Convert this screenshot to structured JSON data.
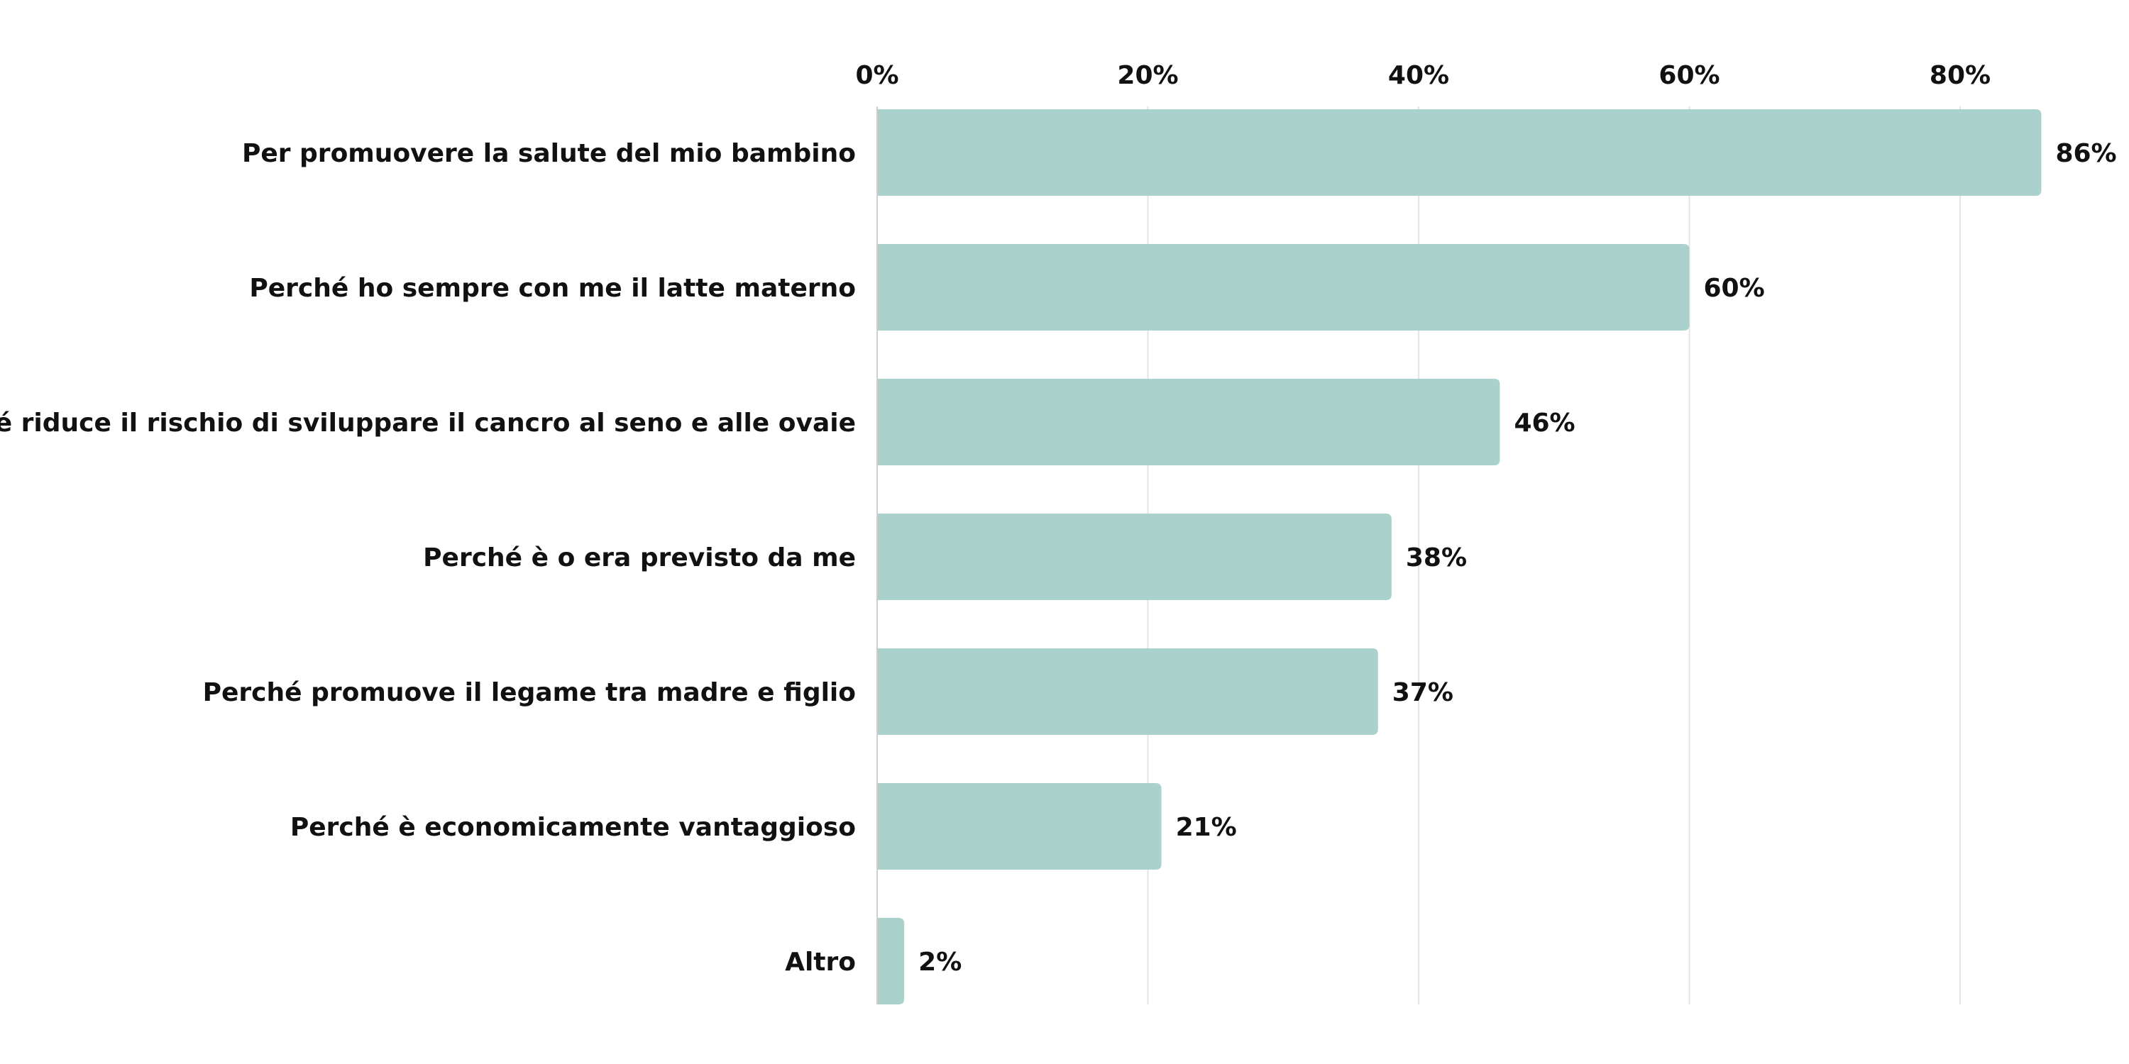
{
  "chart_data": {
    "type": "bar",
    "orientation": "horizontal",
    "title": "",
    "xlabel": "",
    "ylabel": "",
    "categories": [
      "Per promuovere la salute del mio bambino",
      "Perché ho sempre con me il latte materno",
      "Perché riduce il rischio di sviluppare il cancro al seno e alle ovaie",
      "Perché è o era previsto da me",
      "Perché promuove il legame tra madre e figlio",
      "Perché è economicamente vantaggioso",
      "Altro"
    ],
    "values": [
      86,
      60,
      46,
      38,
      37,
      21,
      2
    ],
    "value_labels": [
      "86%",
      "60%",
      "46%",
      "38%",
      "37%",
      "21%",
      "2%"
    ],
    "xlim": [
      0,
      90
    ],
    "x_ticks": [
      0,
      20,
      40,
      60,
      80
    ],
    "x_tick_labels": [
      "0%",
      "20%",
      "40%",
      "60%",
      "80%"
    ],
    "x_axis_position": "top",
    "grid": true,
    "legend": "none",
    "bar_color": "#abd1cd",
    "text_color": "#111111",
    "grid_color": "#e4e4e4"
  }
}
